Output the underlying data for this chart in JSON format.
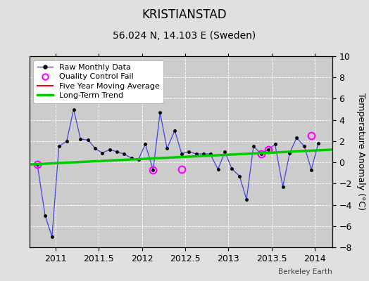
{
  "title": "KRISTIANSTAD",
  "subtitle": "56.024 N, 14.103 E (Sweden)",
  "ylabel": "Temperature Anomaly (°C)",
  "watermark": "Berkeley Earth",
  "xlim": [
    2010.7,
    2014.2
  ],
  "ylim": [
    -8,
    10
  ],
  "yticks": [
    -8,
    -6,
    -4,
    -2,
    0,
    2,
    4,
    6,
    8,
    10
  ],
  "xticks": [
    2011,
    2011.5,
    2012,
    2012.5,
    2013,
    2013.5,
    2014
  ],
  "xtick_labels": [
    "2011",
    "2011.5",
    "2012",
    "2012.5",
    "2013",
    "2013.5",
    "2014"
  ],
  "background_color": "#e0e0e0",
  "plot_bg_color": "#cccccc",
  "raw_x": [
    2010.79,
    2010.88,
    2010.96,
    2011.04,
    2011.13,
    2011.21,
    2011.29,
    2011.38,
    2011.46,
    2011.54,
    2011.63,
    2011.71,
    2011.79,
    2011.88,
    2011.96,
    2012.04,
    2012.13,
    2012.21,
    2012.29,
    2012.38,
    2012.46,
    2012.54,
    2012.63,
    2012.71,
    2012.79,
    2012.88,
    2012.96,
    2013.04,
    2013.13,
    2013.21,
    2013.29,
    2013.38,
    2013.46,
    2013.54,
    2013.63,
    2013.71,
    2013.79,
    2013.88,
    2013.96,
    2014.04
  ],
  "raw_y": [
    -0.2,
    -5.0,
    -7.0,
    1.5,
    2.0,
    5.0,
    2.2,
    2.1,
    1.3,
    0.9,
    1.2,
    1.0,
    0.8,
    0.4,
    0.3,
    1.7,
    -0.7,
    4.7,
    1.3,
    3.0,
    0.8,
    1.0,
    0.8,
    0.8,
    0.8,
    -0.65,
    1.0,
    -0.6,
    -1.3,
    -3.5,
    1.5,
    0.8,
    1.2,
    1.7,
    -2.3,
    0.9,
    2.3,
    1.5,
    -0.7,
    1.8
  ],
  "qc_fail_x": [
    2010.79,
    2012.13,
    2012.46,
    2013.38,
    2013.46,
    2013.96
  ],
  "qc_fail_y": [
    -0.2,
    -0.7,
    -0.65,
    0.8,
    1.2,
    2.5
  ],
  "trend_x": [
    2010.7,
    2014.2
  ],
  "trend_y": [
    -0.2,
    1.2
  ],
  "raw_color": "#4444dd",
  "raw_marker_color": "#000000",
  "qc_color": "#ff00ff",
  "trend_color": "#00cc00",
  "moving_avg_color": "#ff0000",
  "grid_color": "#ffffff",
  "title_fontsize": 12,
  "subtitle_fontsize": 10,
  "label_fontsize": 9,
  "tick_fontsize": 9,
  "legend_fontsize": 8
}
